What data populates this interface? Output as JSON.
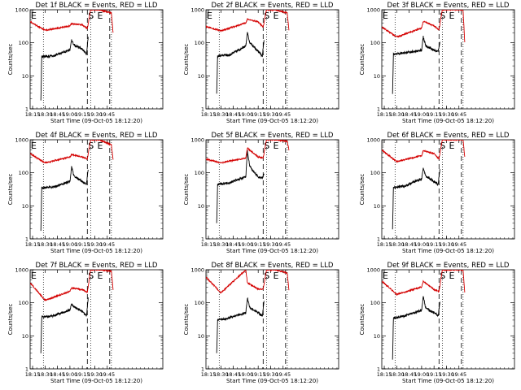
{
  "chart_data": [
    {
      "type": "line",
      "title": "Det 1f BLACK = Events, RED = LLD",
      "xlabel": "Start Time (09-Oct-05 18:12:20)",
      "ylabel": "Counts/sec",
      "yscale": "log",
      "ylim": [
        1,
        1000
      ],
      "xlim": [
        "18:12",
        "20:52"
      ],
      "xticks": [
        "18:15",
        "18:30",
        "18:45",
        "19:00",
        "19:15",
        "19:30",
        "19:45"
      ],
      "yticks": [
        "1",
        "10",
        "100",
        "1000"
      ],
      "annotations": [
        "E",
        "S",
        "E"
      ],
      "series": [
        {
          "color": "#000000",
          "x": [
            "18:25",
            "18:26",
            "18:40",
            "19:00",
            "19:02",
            "19:05",
            "19:15",
            "19:20",
            "19:22"
          ],
          "values": [
            1.8,
            38,
            40,
            60,
            120,
            85,
            65,
            45,
            150
          ]
        },
        {
          "color": "#d40000",
          "x": [
            "18:12",
            "18:30",
            "19:00",
            "19:02",
            "19:15",
            "19:21",
            "19:25",
            "19:35",
            "19:50",
            "19:52"
          ],
          "values": [
            430,
            240,
            320,
            380,
            350,
            270,
            1000,
            1000,
            800,
            200
          ]
        }
      ]
    },
    {
      "type": "line",
      "title": "Det 2f BLACK = Events, RED = LLD",
      "xlabel": "Start Time (09-Oct-05 18:12:20)",
      "ylabel": "Counts/sec",
      "yscale": "log",
      "ylim": [
        1,
        1000
      ],
      "xlim": [
        "18:12",
        "20:52"
      ],
      "xticks": [
        "18:15",
        "18:30",
        "18:45",
        "19:00",
        "19:15",
        "19:30",
        "19:45"
      ],
      "yticks": [
        "1",
        "10",
        "100",
        "1000"
      ],
      "annotations": [
        "E",
        "S",
        "E"
      ],
      "series": [
        {
          "color": "#000000",
          "x": [
            "18:25",
            "18:26",
            "18:40",
            "19:00",
            "19:02",
            "19:05",
            "19:15",
            "19:20",
            "19:22"
          ],
          "values": [
            3,
            40,
            42,
            80,
            200,
            100,
            55,
            40,
            120
          ]
        },
        {
          "color": "#d40000",
          "x": [
            "18:12",
            "18:30",
            "19:00",
            "19:02",
            "19:15",
            "19:21",
            "19:25",
            "19:35",
            "19:50",
            "19:52"
          ],
          "values": [
            310,
            230,
            400,
            520,
            430,
            300,
            1000,
            1000,
            800,
            250
          ]
        }
      ]
    },
    {
      "type": "line",
      "title": "Det 3f BLACK = Events, RED = LLD",
      "xlabel": "Start Time (09-Oct-05 18:12:20)",
      "ylabel": "Counts/sec",
      "yscale": "log",
      "ylim": [
        1,
        1000
      ],
      "xlim": [
        "18:12",
        "20:52"
      ],
      "xticks": [
        "18:15",
        "18:30",
        "18:45",
        "19:00",
        "19:15",
        "19:30",
        "19:45"
      ],
      "yticks": [
        "1",
        "10",
        "100",
        "1000"
      ],
      "annotations": [
        "E",
        "S",
        "E"
      ],
      "series": [
        {
          "color": "#000000",
          "x": [
            "18:25",
            "18:26",
            "18:40",
            "19:00",
            "19:02",
            "19:05",
            "19:15",
            "19:20",
            "19:22"
          ],
          "values": [
            3,
            45,
            50,
            60,
            150,
            80,
            60,
            55,
            100
          ]
        },
        {
          "color": "#d40000",
          "x": [
            "18:12",
            "18:30",
            "19:00",
            "19:02",
            "19:15",
            "19:21",
            "19:25",
            "19:35",
            "19:50",
            "19:52"
          ],
          "values": [
            300,
            150,
            280,
            450,
            320,
            250,
            1000,
            1000,
            1000,
            100
          ]
        }
      ]
    },
    {
      "type": "line",
      "title": "Det 4f BLACK = Events, RED = LLD",
      "xlabel": "Start Time (09-Oct-05 18:12:20)",
      "ylabel": "Counts/sec",
      "yscale": "log",
      "ylim": [
        1,
        1000
      ],
      "xlim": [
        "18:12",
        "20:52"
      ],
      "xticks": [
        "18:15",
        "18:30",
        "18:45",
        "19:00",
        "19:15",
        "19:30",
        "19:45"
      ],
      "yticks": [
        "1",
        "10",
        "100",
        "1000"
      ],
      "annotations": [
        "E",
        "S",
        "E"
      ],
      "series": [
        {
          "color": "#000000",
          "x": [
            "18:25",
            "18:26",
            "18:40",
            "19:00",
            "19:02",
            "19:05",
            "19:15",
            "19:20",
            "19:22"
          ],
          "values": [
            1.8,
            35,
            37,
            55,
            150,
            80,
            55,
            45,
            130
          ]
        },
        {
          "color": "#d40000",
          "x": [
            "18:12",
            "18:30",
            "19:00",
            "19:02",
            "19:15",
            "19:21",
            "19:25",
            "19:35",
            "19:50",
            "19:52"
          ],
          "values": [
            380,
            200,
            300,
            360,
            300,
            260,
            1000,
            1000,
            700,
            250
          ]
        }
      ]
    },
    {
      "type": "line",
      "title": "Det 5f BLACK = Events, RED = LLD",
      "xlabel": "Start Time (09-Oct-05 18:12:20)",
      "ylabel": "Counts/sec",
      "yscale": "log",
      "ylim": [
        1,
        1000
      ],
      "xlim": [
        "18:12",
        "20:52"
      ],
      "xticks": [
        "18:15",
        "18:30",
        "18:45",
        "19:00",
        "19:15",
        "19:30",
        "19:45"
      ],
      "yticks": [
        "1",
        "10",
        "100",
        "1000"
      ],
      "annotations": [
        "S",
        "E"
      ],
      "series": [
        {
          "color": "#000000",
          "x": [
            "18:25",
            "18:26",
            "18:40",
            "19:00",
            "19:02",
            "19:05",
            "19:15",
            "19:20",
            "19:22"
          ],
          "values": [
            3,
            45,
            50,
            75,
            450,
            150,
            75,
            70,
            100
          ]
        },
        {
          "color": "#d40000",
          "x": [
            "18:12",
            "18:30",
            "19:00",
            "19:02",
            "19:15",
            "19:21",
            "19:25",
            "19:35",
            "19:50",
            "19:52"
          ],
          "values": [
            260,
            200,
            280,
            560,
            300,
            280,
            1000,
            1000,
            900,
            500
          ]
        }
      ]
    },
    {
      "type": "line",
      "title": "Det 6f BLACK = Events, RED = LLD",
      "xlabel": "Start Time (09-Oct-05 18:12:20)",
      "ylabel": "Counts/sec",
      "yscale": "log",
      "ylim": [
        1,
        1000
      ],
      "xlim": [
        "18:12",
        "20:52"
      ],
      "xticks": [
        "18:15",
        "18:30",
        "18:45",
        "19:00",
        "19:15",
        "19:30",
        "19:45"
      ],
      "yticks": [
        "1",
        "10",
        "100",
        "1000"
      ],
      "annotations": [
        "S",
        "E"
      ],
      "series": [
        {
          "color": "#000000",
          "x": [
            "18:25",
            "18:26",
            "18:40",
            "19:00",
            "19:02",
            "19:05",
            "19:15",
            "19:20",
            "19:22"
          ],
          "values": [
            2,
            35,
            40,
            65,
            140,
            80,
            55,
            45,
            130
          ]
        },
        {
          "color": "#d40000",
          "x": [
            "18:12",
            "18:30",
            "19:00",
            "19:02",
            "19:15",
            "19:21",
            "19:25",
            "19:35",
            "19:50",
            "19:52"
          ],
          "values": [
            480,
            220,
            330,
            470,
            380,
            260,
            1000,
            1000,
            1000,
            300
          ]
        }
      ]
    },
    {
      "type": "line",
      "title": "Det 7f BLACK = Events, RED = LLD",
      "xlabel": "Start Time (09-Oct-05 18:12:20)",
      "ylabel": "Counts/sec",
      "yscale": "log",
      "ylim": [
        1,
        1000
      ],
      "xlim": [
        "18:12",
        "20:52"
      ],
      "xticks": [
        "18:15",
        "18:30",
        "18:45",
        "19:00",
        "19:15",
        "19:30",
        "19:45"
      ],
      "yticks": [
        "1",
        "10",
        "100",
        "1000"
      ],
      "annotations": [
        "E",
        "S",
        "E"
      ],
      "series": [
        {
          "color": "#000000",
          "x": [
            "18:25",
            "18:26",
            "18:40",
            "19:00",
            "19:02",
            "19:05",
            "19:15",
            "19:20",
            "19:22"
          ],
          "values": [
            3,
            37,
            40,
            60,
            90,
            75,
            55,
            40,
            140
          ]
        },
        {
          "color": "#d40000",
          "x": [
            "18:12",
            "18:30",
            "19:00",
            "19:02",
            "19:15",
            "19:21",
            "19:25",
            "19:35",
            "19:50",
            "19:52"
          ],
          "values": [
            400,
            120,
            220,
            280,
            250,
            210,
            1000,
            1000,
            900,
            250
          ]
        }
      ]
    },
    {
      "type": "line",
      "title": "Det 8f BLACK = Events, RED = LLD",
      "xlabel": "Start Time (09-Oct-05 18:12:20)",
      "ylabel": "Counts/sec",
      "yscale": "log",
      "ylim": [
        1,
        1000
      ],
      "xlim": [
        "18:12",
        "20:52"
      ],
      "xticks": [
        "18:15",
        "18:30",
        "18:45",
        "19:00",
        "19:15",
        "19:30",
        "19:45"
      ],
      "yticks": [
        "1",
        "10",
        "100",
        "1000"
      ],
      "annotations": [
        "S",
        "E"
      ],
      "series": [
        {
          "color": "#000000",
          "x": [
            "18:25",
            "18:26",
            "18:40",
            "19:00",
            "19:02",
            "19:05",
            "19:15",
            "19:20",
            "19:22"
          ],
          "values": [
            3,
            30,
            35,
            50,
            140,
            70,
            50,
            40,
            110
          ]
        },
        {
          "color": "#d40000",
          "x": [
            "18:12",
            "18:30",
            "19:00",
            "19:02",
            "19:15",
            "19:21",
            "19:25",
            "19:35",
            "19:50",
            "19:52"
          ],
          "values": [
            600,
            200,
            1000,
            400,
            260,
            260,
            1000,
            1000,
            800,
            250
          ]
        }
      ]
    },
    {
      "type": "line",
      "title": "Det 9f BLACK = Events, RED = LLD",
      "xlabel": "Start Time (09-Oct-05 18:12:20)",
      "ylabel": "Counts/sec",
      "yscale": "log",
      "ylim": [
        1,
        1000
      ],
      "xlim": [
        "18:12",
        "20:52"
      ],
      "xticks": [
        "18:15",
        "18:30",
        "18:45",
        "19:00",
        "19:15",
        "19:30",
        "19:45"
      ],
      "yticks": [
        "1",
        "10",
        "100",
        "1000"
      ],
      "annotations": [
        "E",
        "S",
        "E"
      ],
      "series": [
        {
          "color": "#000000",
          "x": [
            "18:25",
            "18:26",
            "18:40",
            "19:00",
            "19:02",
            "19:05",
            "19:15",
            "19:20",
            "19:22"
          ],
          "values": [
            2,
            35,
            40,
            60,
            150,
            70,
            50,
            40,
            100
          ]
        },
        {
          "color": "#d40000",
          "x": [
            "18:12",
            "18:30",
            "19:00",
            "19:02",
            "19:15",
            "19:21",
            "19:25",
            "19:35",
            "19:50",
            "19:52"
          ],
          "values": [
            450,
            180,
            300,
            450,
            250,
            220,
            1000,
            1000,
            1000,
            200
          ]
        }
      ]
    }
  ]
}
